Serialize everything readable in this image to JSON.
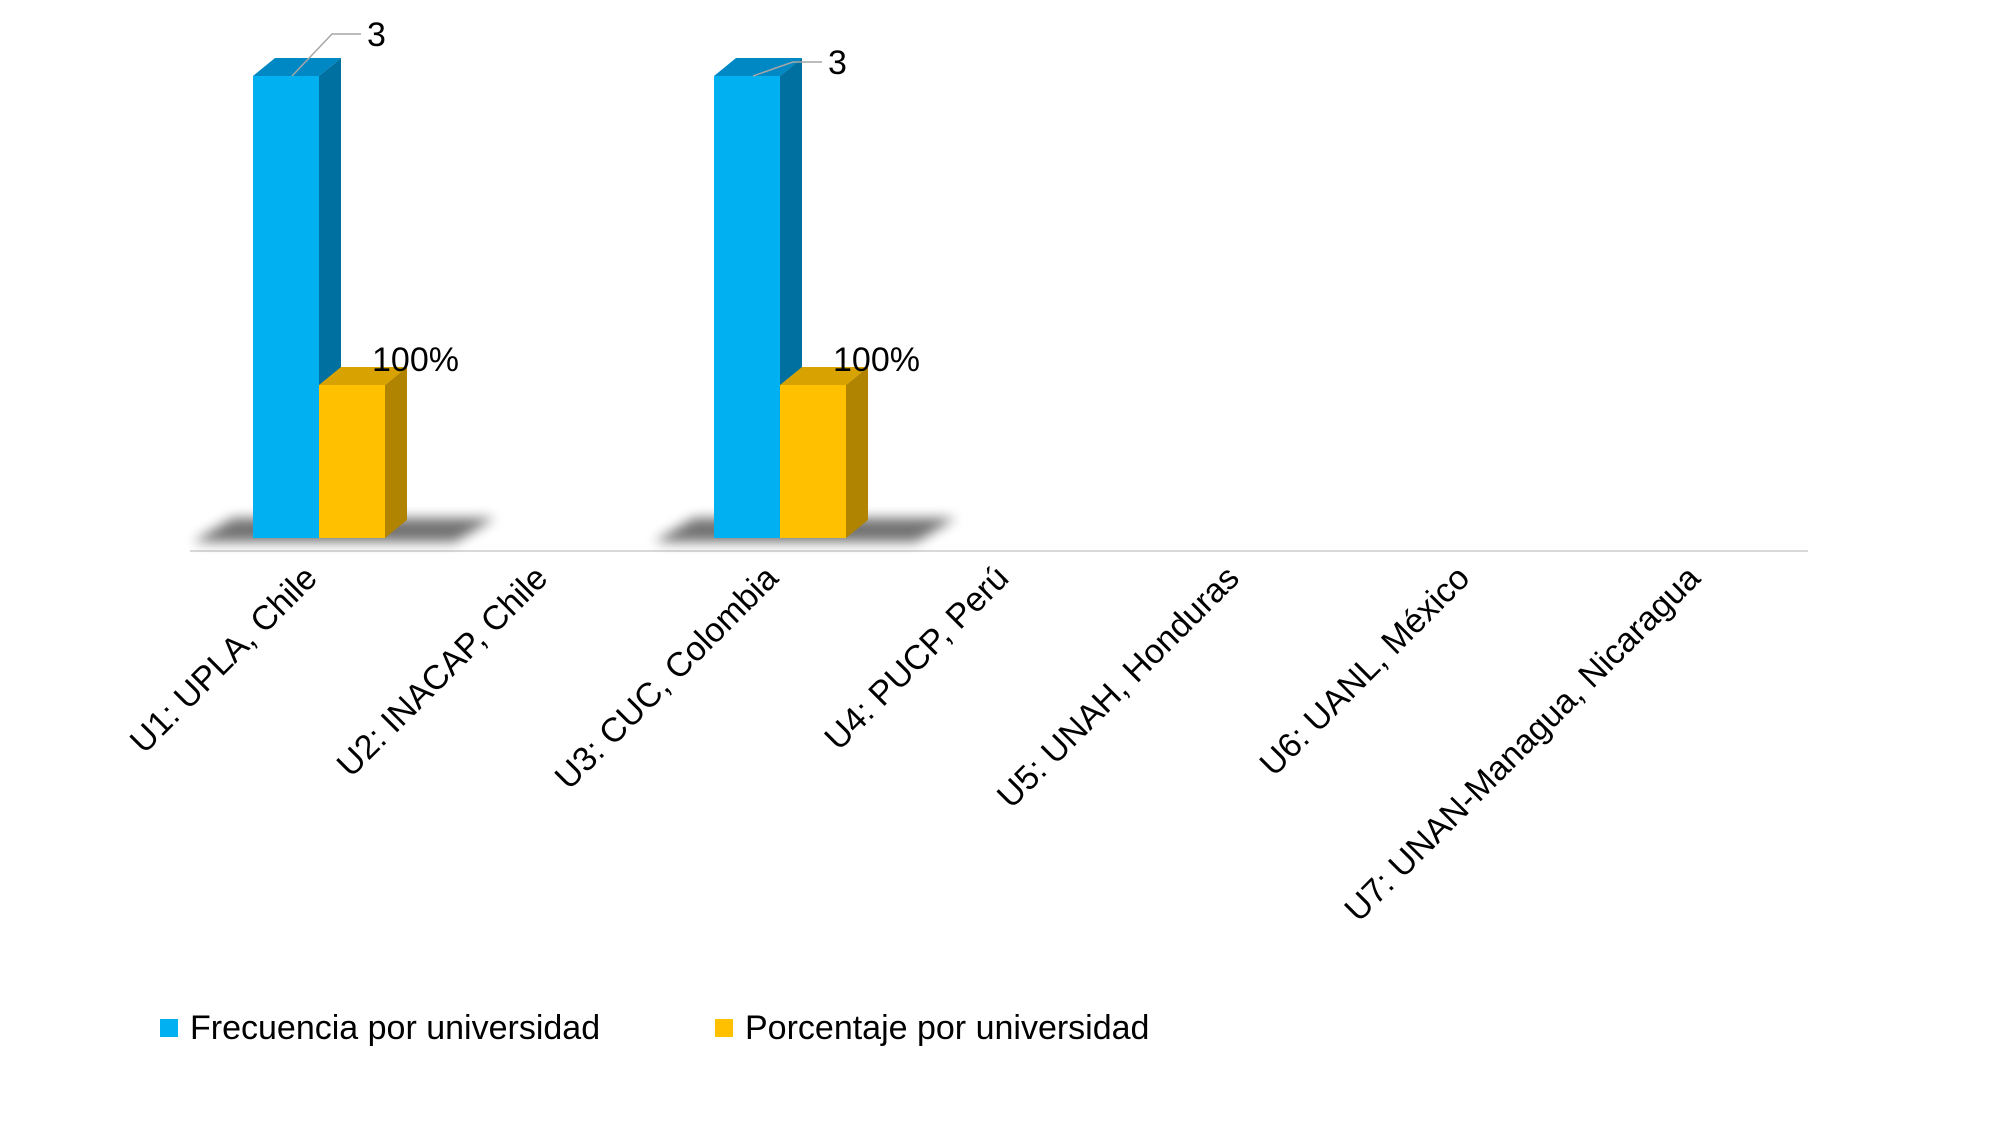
{
  "chart_data": {
    "type": "bar",
    "categories": [
      "U1: UPLA, Chile",
      "U2: INACAP, Chile",
      "U3: CUC, Colombia",
      "U4: PUCP, Perú",
      "U5: UNAH, Honduras",
      "U6: UANL, México",
      "U7: UNAN-Managua, Nicaragua"
    ],
    "series": [
      {
        "name": "Frecuencia por universidad",
        "values": [
          3,
          null,
          3,
          null,
          null,
          null,
          null
        ],
        "data_labels": [
          "3",
          "",
          "3",
          "",
          "",
          "",
          ""
        ],
        "color": "#00b0f0",
        "side_color": "#0070a0",
        "top_color": "#0088c4"
      },
      {
        "name": "Porcentaje por universidad",
        "values": [
          1.0,
          null,
          1.0,
          null,
          null,
          null,
          null
        ],
        "data_labels": [
          "100%",
          "",
          "100%",
          "",
          "",
          "",
          ""
        ],
        "color": "#ffc000",
        "side_color": "#b08400",
        "top_color": "#d8a200"
      }
    ],
    "legend_position": "bottom-left",
    "grid": false,
    "style": "3d-column"
  }
}
